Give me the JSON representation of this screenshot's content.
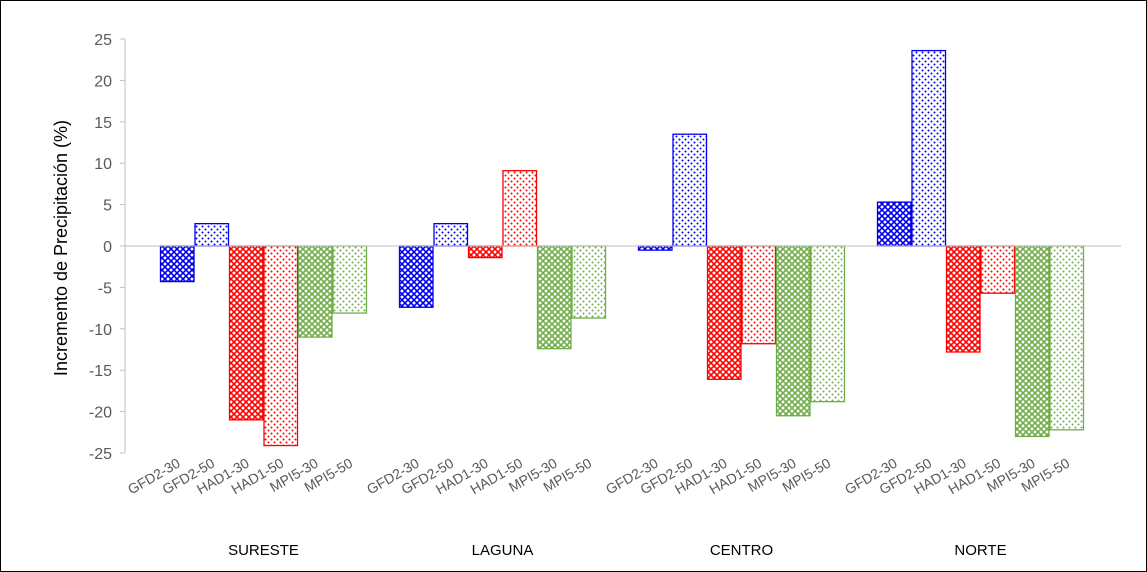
{
  "chart_data": {
    "type": "bar",
    "ylabel": "Incremento de Precipitación (%)",
    "xlabel": "",
    "title": "",
    "ylim": [
      -25,
      25
    ],
    "yticks": [
      25,
      20,
      15,
      10,
      5,
      0,
      -5,
      -10,
      -15,
      -20,
      -25
    ],
    "grid": false,
    "legend": "none",
    "groups": [
      {
        "name": "SURESTE",
        "bars": [
          {
            "label": "GFD2-30",
            "value": -4.3,
            "color": "#0000ee",
            "pattern": "dense"
          },
          {
            "label": "GFD2-50",
            "value": 2.7,
            "color": "#0000ee",
            "pattern": "sparse"
          },
          {
            "label": "HAD1-30",
            "value": -21.0,
            "color": "#ff0000",
            "pattern": "dense"
          },
          {
            "label": "HAD1-50",
            "value": -24.1,
            "color": "#ff0000",
            "pattern": "sparse"
          },
          {
            "label": "MPI5-30",
            "value": -11.0,
            "color": "#70ad47",
            "pattern": "dense"
          },
          {
            "label": "MPI5-50",
            "value": -8.1,
            "color": "#70ad47",
            "pattern": "sparse"
          }
        ]
      },
      {
        "name": "LAGUNA",
        "bars": [
          {
            "label": "GFD2-30",
            "value": -7.4,
            "color": "#0000ee",
            "pattern": "dense"
          },
          {
            "label": "GFD2-50",
            "value": 2.7,
            "color": "#0000ee",
            "pattern": "sparse"
          },
          {
            "label": "HAD1-30",
            "value": -1.4,
            "color": "#ff0000",
            "pattern": "dense"
          },
          {
            "label": "HAD1-50",
            "value": 9.1,
            "color": "#ff0000",
            "pattern": "sparse"
          },
          {
            "label": "MPI5-30",
            "value": -12.4,
            "color": "#70ad47",
            "pattern": "dense"
          },
          {
            "label": "MPI5-50",
            "value": -8.7,
            "color": "#70ad47",
            "pattern": "sparse"
          }
        ]
      },
      {
        "name": "CENTRO",
        "bars": [
          {
            "label": "GFD2-30",
            "value": -0.5,
            "color": "#0000ee",
            "pattern": "dense"
          },
          {
            "label": "GFD2-50",
            "value": 13.5,
            "color": "#0000ee",
            "pattern": "sparse"
          },
          {
            "label": "HAD1-30",
            "value": -16.1,
            "color": "#ff0000",
            "pattern": "dense"
          },
          {
            "label": "HAD1-50",
            "value": -11.8,
            "color": "#ff0000",
            "pattern": "sparse"
          },
          {
            "label": "MPI5-30",
            "value": -20.5,
            "color": "#70ad47",
            "pattern": "dense"
          },
          {
            "label": "MPI5-50",
            "value": -18.8,
            "color": "#70ad47",
            "pattern": "sparse"
          }
        ]
      },
      {
        "name": "NORTE",
        "bars": [
          {
            "label": "GFD2-30",
            "value": 5.3,
            "color": "#0000ee",
            "pattern": "dense"
          },
          {
            "label": "GFD2-50",
            "value": 23.6,
            "color": "#0000ee",
            "pattern": "sparse"
          },
          {
            "label": "HAD1-30",
            "value": -12.8,
            "color": "#ff0000",
            "pattern": "dense"
          },
          {
            "label": "HAD1-50",
            "value": -5.7,
            "color": "#ff0000",
            "pattern": "sparse"
          },
          {
            "label": "MPI5-30",
            "value": -23.0,
            "color": "#70ad47",
            "pattern": "dense"
          },
          {
            "label": "MPI5-50",
            "value": -22.2,
            "color": "#70ad47",
            "pattern": "sparse"
          }
        ]
      }
    ]
  }
}
